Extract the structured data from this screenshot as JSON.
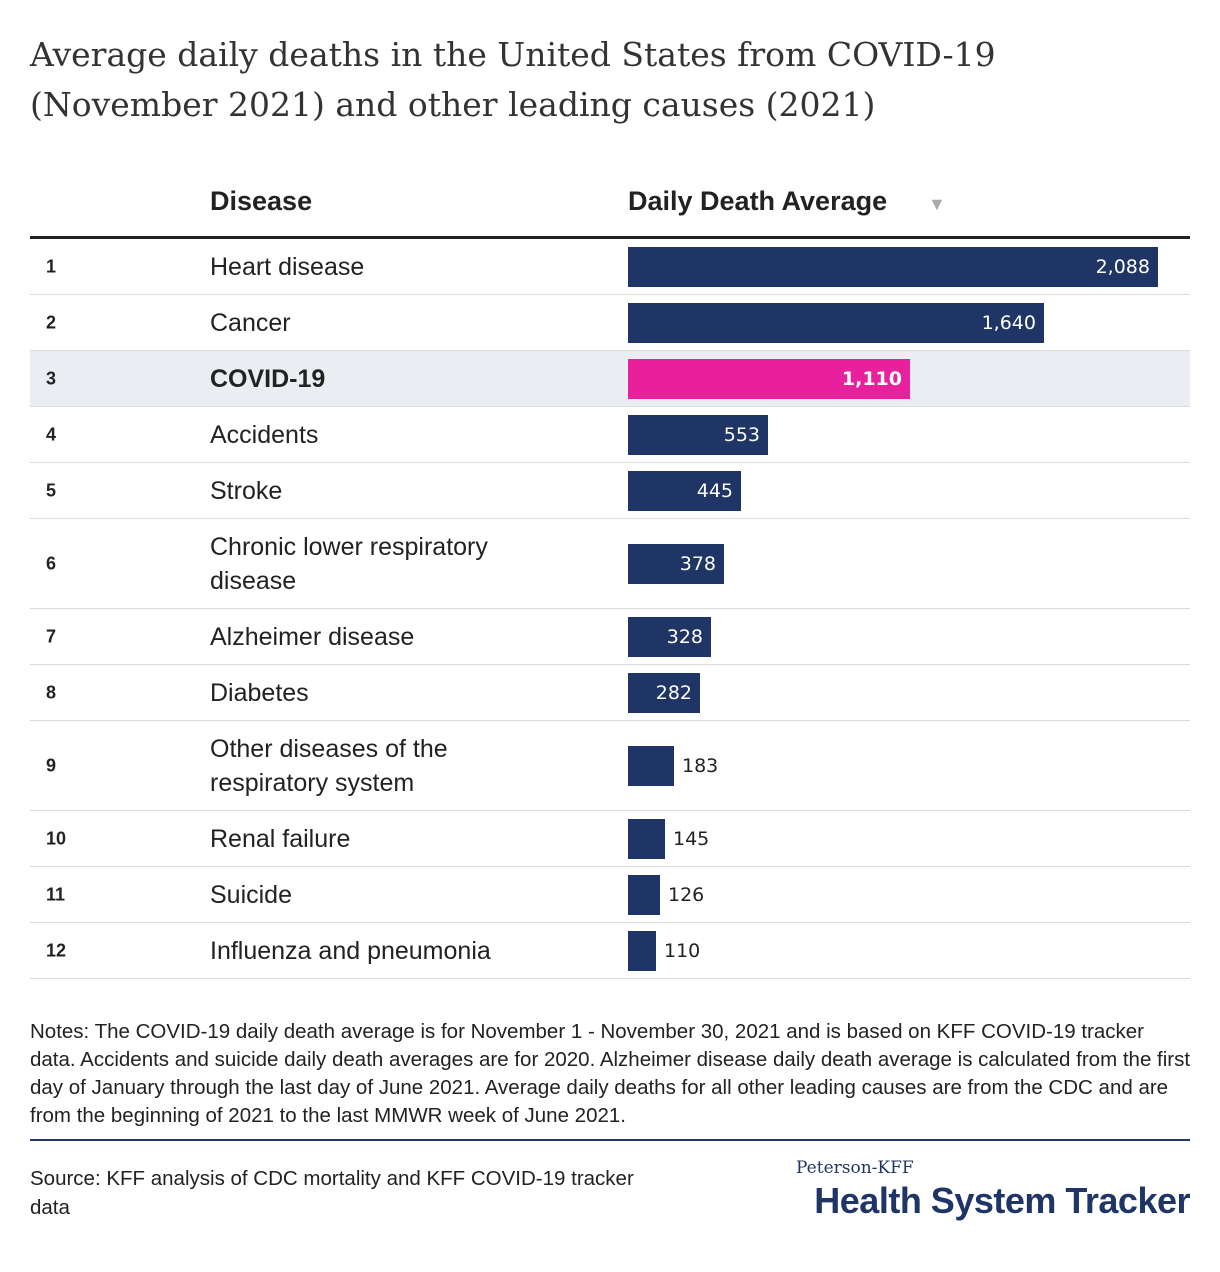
{
  "header": {
    "col_disease": "Disease",
    "col_value": "Daily Death Average",
    "sort_glyph": "▼"
  },
  "chart_data": {
    "type": "bar",
    "orientation": "horizontal",
    "title": "Average daily deaths in the United States from COVID-19 (November 2021) and other leading causes (2021)",
    "ranks": [
      "1",
      "2",
      "3",
      "4",
      "5",
      "6",
      "7",
      "8",
      "9",
      "10",
      "11",
      "12"
    ],
    "categories": [
      "Heart disease",
      "Cancer",
      "COVID-19",
      "Accidents",
      "Stroke",
      "Chronic lower respiratory disease",
      "Alzheimer disease",
      "Diabetes",
      "Other diseases of the respiratory system",
      "Renal failure",
      "Suicide",
      "Influenza and pneumonia"
    ],
    "values": [
      2088,
      1640,
      1110,
      553,
      445,
      378,
      328,
      282,
      183,
      145,
      126,
      110
    ],
    "value_labels": [
      "2,088",
      "1,640",
      "1,110",
      "553",
      "445",
      "378",
      "328",
      "282",
      "183",
      "145",
      "126",
      "110"
    ],
    "highlight": "COVID-19",
    "colors": {
      "bar": "#1f3566",
      "highlight": "#e8209c"
    },
    "xlim": [
      0,
      2200
    ]
  },
  "notes": "Notes: The COVID-19 daily death average is for November 1 - November 30, 2021 and is based on KFF COVID-19 tracker data. Accidents and suicide daily death averages are for 2020. Alzheimer disease daily death average is calculated from the first day of January through the last day of June 2021. Average daily deaths for all other leading causes are from the CDC and are from the beginning of 2021 to the last MMWR week of June 2021.",
  "source": "Source: KFF analysis of CDC mortality and KFF COVID-19 tracker data",
  "logo": {
    "small": "Peterson-KFF",
    "big": "Health System Tracker"
  }
}
